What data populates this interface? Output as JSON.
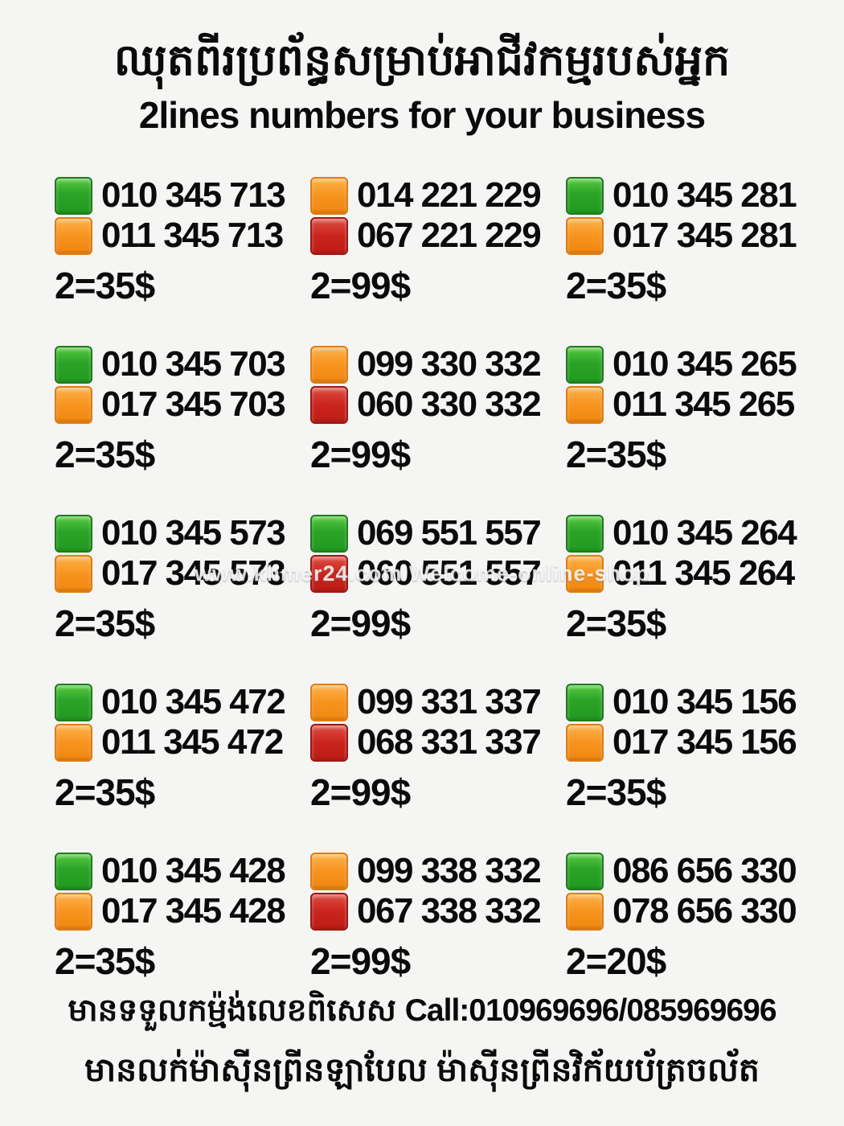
{
  "header": {
    "title_khmer": "ឈុតពីរប្រព័ន្ធសម្រាប់អាជីវកម្មរបស់អ្នក",
    "title_english": "2lines numbers for your business"
  },
  "colors": {
    "green": "#2aa326",
    "orange": "#f7941e",
    "red": "#c9241d"
  },
  "watermark": "www.khmer24.com Welcome-online-shop",
  "groups": [
    {
      "line1": {
        "color": "green",
        "number": "010 345 713"
      },
      "line2": {
        "color": "orange",
        "number": "011 345 713"
      },
      "price": "2=35$"
    },
    {
      "line1": {
        "color": "orange",
        "number": "014 221 229"
      },
      "line2": {
        "color": "red",
        "number": "067 221 229"
      },
      "price": "2=99$"
    },
    {
      "line1": {
        "color": "green",
        "number": "010 345 281"
      },
      "line2": {
        "color": "orange",
        "number": "017 345 281"
      },
      "price": "2=35$"
    },
    {
      "line1": {
        "color": "green",
        "number": "010 345 703"
      },
      "line2": {
        "color": "orange",
        "number": "017 345 703"
      },
      "price": "2=35$"
    },
    {
      "line1": {
        "color": "orange",
        "number": "099 330 332"
      },
      "line2": {
        "color": "red",
        "number": "060 330 332"
      },
      "price": "2=99$"
    },
    {
      "line1": {
        "color": "green",
        "number": "010 345 265"
      },
      "line2": {
        "color": "orange",
        "number": "011 345 265"
      },
      "price": "2=35$"
    },
    {
      "line1": {
        "color": "green",
        "number": "010 345 573"
      },
      "line2": {
        "color": "orange",
        "number": "017 345 573"
      },
      "price": "2=35$"
    },
    {
      "line1": {
        "color": "green",
        "number": "069 551 557"
      },
      "line2": {
        "color": "red",
        "number": "060 551 557"
      },
      "price": "2=99$"
    },
    {
      "line1": {
        "color": "green",
        "number": "010 345 264"
      },
      "line2": {
        "color": "orange",
        "number": "011 345 264"
      },
      "price": "2=35$"
    },
    {
      "line1": {
        "color": "green",
        "number": "010 345 472"
      },
      "line2": {
        "color": "orange",
        "number": "011 345 472"
      },
      "price": "2=35$"
    },
    {
      "line1": {
        "color": "orange",
        "number": "099 331 337"
      },
      "line2": {
        "color": "red",
        "number": "068 331 337"
      },
      "price": "2=99$"
    },
    {
      "line1": {
        "color": "green",
        "number": "010 345 156"
      },
      "line2": {
        "color": "orange",
        "number": "017 345 156"
      },
      "price": "2=35$"
    },
    {
      "line1": {
        "color": "green",
        "number": "010 345 428"
      },
      "line2": {
        "color": "orange",
        "number": "017 345 428"
      },
      "price": "2=35$"
    },
    {
      "line1": {
        "color": "orange",
        "number": "099 338 332"
      },
      "line2": {
        "color": "red",
        "number": "067 338 332"
      },
      "price": "2=99$"
    },
    {
      "line1": {
        "color": "green",
        "number": "086 656 330"
      },
      "line2": {
        "color": "orange",
        "number": "078 656 330"
      },
      "price": "2=20$"
    }
  ],
  "footer": {
    "line1_khmer": "មានទទួលកម្ម៉ង់លេខពិសេស",
    "line1_call": "Call:010969696/085969696",
    "line2": "មានលក់ម៉ាស៊ីនព្រីនឡាបែល ម៉ាស៊ីនព្រីនវិក័យប័ត្រចល័ត"
  }
}
